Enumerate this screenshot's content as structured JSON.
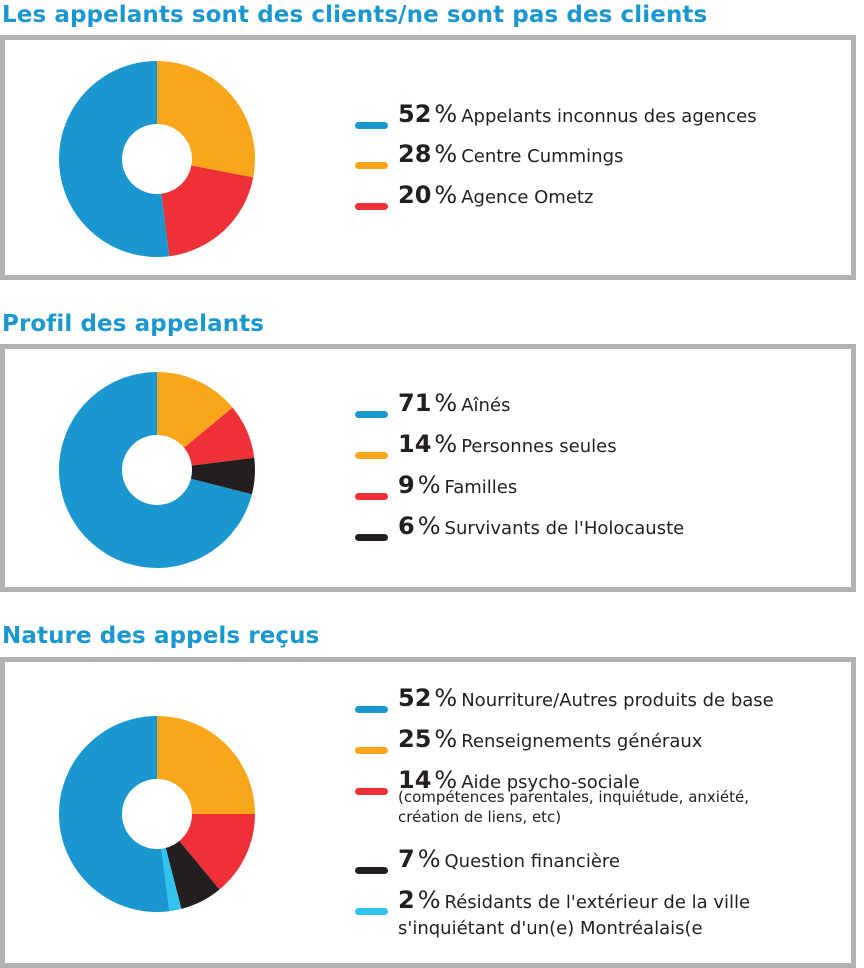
{
  "colors": {
    "blue": "#1b97cf",
    "orange": "#f9a61a",
    "red": "#ee3136",
    "black": "#231f20",
    "light_blue": "#2fc3ee"
  },
  "chart_data": [
    {
      "type": "pie",
      "title": "Les appelants sont des clients/ne sont pas des clients",
      "unit": "%",
      "slices": [
        {
          "label": "Appelants inconnus des agences",
          "value": 52,
          "color": "#1b97cf"
        },
        {
          "label": "Centre Cummings",
          "value": 28,
          "color": "#f9a61a"
        },
        {
          "label": "Agence Ometz",
          "value": 20,
          "color": "#ee3136"
        }
      ],
      "pie_order": [
        1,
        2,
        0
      ]
    },
    {
      "type": "pie",
      "title": "Profil des appelants",
      "unit": "%",
      "slices": [
        {
          "label": "Aînés",
          "value": 71,
          "color": "#1b97cf"
        },
        {
          "label": "Personnes seules",
          "value": 14,
          "color": "#f9a61a"
        },
        {
          "label": "Familles",
          "value": 9,
          "color": "#ee3136"
        },
        {
          "label": "Survivants de l'Holocauste",
          "value": 6,
          "color": "#231f20"
        }
      ],
      "pie_order": [
        1,
        2,
        3,
        0
      ]
    },
    {
      "type": "pie",
      "title": "Nature des appels reçus",
      "unit": "%",
      "slices": [
        {
          "label": "Nourriture/Autres produits de base",
          "value": 52,
          "color": "#1b97cf"
        },
        {
          "label": "Renseignements généraux",
          "value": 25,
          "color": "#f9a61a"
        },
        {
          "label": "Aide psycho-sociale",
          "note": "(compétences parentales, inquiétude, anxiété, création de liens, etc)",
          "value": 14,
          "color": "#ee3136"
        },
        {
          "label": "Question financière",
          "value": 7,
          "color": "#231f20"
        },
        {
          "label": "Résidants de l'extérieur de la ville",
          "label_cont": "s'inquiétant d'un(e) Montréalais(e",
          "value": 2,
          "color": "#2fc3ee"
        }
      ],
      "pie_order": [
        1,
        2,
        3,
        4,
        0
      ]
    }
  ]
}
